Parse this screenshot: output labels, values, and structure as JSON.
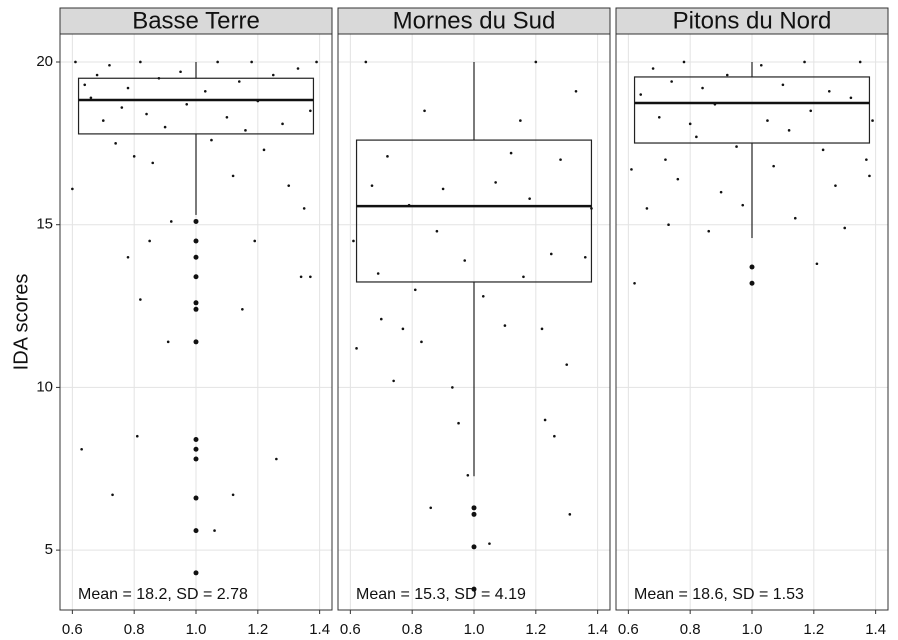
{
  "chart_data": [
    {
      "type": "box",
      "title": "Basse Terre",
      "ylabel": "IDA scores",
      "annotation": "Mean = 18.2, SD = 2.78",
      "position": 1,
      "box_xlim": [
        0.62,
        1.38
      ],
      "whisker_low": 15.3,
      "q1": 17.79,
      "median": 18.83,
      "q3": 19.5,
      "whisker_high": 20,
      "outliers": [
        15.1,
        14.5,
        14.0,
        13.4,
        12.6,
        12.4,
        11.4,
        8.4,
        8.1,
        7.8,
        6.6,
        5.6,
        4.3
      ],
      "points": {
        "x": [
          0.61,
          0.64,
          0.66,
          0.68,
          0.7,
          0.72,
          0.74,
          0.76,
          0.78,
          0.8,
          0.82,
          0.84,
          0.86,
          0.88,
          0.9,
          0.92,
          0.95,
          0.97,
          1.03,
          1.05,
          1.07,
          1.1,
          1.12,
          1.14,
          1.16,
          1.18,
          1.2,
          1.22,
          1.25,
          1.28,
          1.3,
          1.33,
          1.35,
          1.37,
          1.39,
          0.6,
          0.63,
          0.73,
          0.81,
          0.85,
          0.91,
          1.12,
          1.15,
          1.26,
          1.34,
          1.37,
          0.78,
          0.82,
          1.06,
          1.19
        ],
        "y": [
          20,
          19.3,
          18.9,
          19.6,
          18.2,
          19.9,
          17.5,
          18.6,
          19.2,
          17.1,
          20,
          18.4,
          16.9,
          19.5,
          18.0,
          15.1,
          19.7,
          18.7,
          19.1,
          17.6,
          20,
          18.3,
          16.5,
          19.4,
          17.9,
          20,
          18.8,
          17.3,
          19.6,
          18.1,
          16.2,
          19.8,
          15.5,
          18.5,
          20,
          16.1,
          8.1,
          6.7,
          8.5,
          14.5,
          11.4,
          6.7,
          12.4,
          7.8,
          13.4,
          13.4,
          14.0,
          12.7,
          5.6,
          14.5
        ]
      },
      "xlim": [
        0.56,
        1.44
      ],
      "xticks": [
        0.6,
        0.8,
        {
          "value": 1,
          "label": "1.0"
        },
        1.2,
        1.4
      ],
      "ylim": [
        3.16,
        20.86
      ],
      "yticks": [
        5,
        10,
        15,
        20
      ],
      "grid": true
    },
    {
      "type": "box",
      "title": "Mornes du Sud",
      "annotation": "Mean = 15.3, SD = 4.19",
      "position": 1,
      "box_xlim": [
        0.62,
        1.38
      ],
      "whisker_low": 7.27,
      "q1": 13.24,
      "median": 15.57,
      "q3": 17.6,
      "whisker_high": 20,
      "outliers": [
        6.3,
        6.1,
        5.1,
        3.8
      ],
      "points": {
        "x": [
          0.61,
          0.62,
          0.65,
          0.67,
          0.7,
          0.72,
          0.74,
          0.77,
          0.79,
          0.81,
          0.84,
          0.86,
          0.88,
          0.9,
          0.93,
          0.95,
          0.97,
          0.98,
          1.03,
          1.05,
          1.07,
          1.1,
          1.12,
          1.15,
          1.18,
          1.2,
          1.22,
          1.23,
          1.25,
          1.28,
          1.3,
          1.31,
          1.33,
          1.36,
          1.38,
          0.69,
          1.16,
          1.26,
          0.83
        ],
        "y": [
          14.5,
          11.2,
          20,
          16.2,
          12.1,
          17.1,
          10.2,
          11.8,
          15.6,
          13.0,
          18.5,
          6.3,
          14.8,
          16.1,
          10.0,
          8.9,
          13.9,
          7.3,
          12.8,
          5.2,
          16.3,
          11.9,
          17.2,
          18.2,
          15.8,
          20,
          11.8,
          9.0,
          14.1,
          17.0,
          10.7,
          6.1,
          19.1,
          14.0,
          15.5,
          13.5,
          13.4,
          8.5,
          11.4
        ]
      },
      "xlim": [
        0.56,
        1.44
      ],
      "xticks": [
        0.6,
        0.8,
        {
          "value": 1,
          "label": "1.0"
        },
        1.2,
        1.4
      ],
      "ylim": [
        3.16,
        20.86
      ],
      "yticks": [
        5,
        10,
        15,
        20
      ],
      "grid": true
    },
    {
      "type": "box",
      "title": "Pitons du Nord",
      "annotation": "Mean = 18.6, SD = 1.53",
      "position": 1,
      "box_xlim": [
        0.62,
        1.38
      ],
      "whisker_low": 14.59,
      "q1": 17.51,
      "median": 18.74,
      "q3": 19.54,
      "whisker_high": 20,
      "outliers": [
        13.7,
        13.2
      ],
      "points": {
        "x": [
          0.61,
          0.62,
          0.64,
          0.66,
          0.68,
          0.7,
          0.72,
          0.74,
          0.76,
          0.78,
          0.8,
          0.82,
          0.84,
          0.86,
          0.88,
          0.9,
          0.92,
          0.95,
          0.97,
          1.03,
          1.05,
          1.07,
          1.1,
          1.12,
          1.14,
          1.17,
          1.19,
          1.21,
          1.23,
          1.25,
          1.27,
          1.3,
          1.32,
          1.35,
          1.37,
          1.39,
          1.38,
          0.73
        ],
        "y": [
          16.7,
          13.2,
          19.0,
          15.5,
          19.8,
          18.3,
          17.0,
          19.4,
          16.4,
          20,
          18.1,
          17.7,
          19.2,
          14.8,
          18.7,
          16.0,
          19.6,
          17.4,
          15.6,
          19.9,
          18.2,
          16.8,
          19.3,
          17.9,
          15.2,
          20,
          18.5,
          13.8,
          17.3,
          19.1,
          16.2,
          14.9,
          18.9,
          20,
          17.0,
          18.2,
          16.5,
          15.0
        ]
      },
      "xlim": [
        0.56,
        1.44
      ],
      "xticks": [
        0.6,
        0.8,
        {
          "value": 1,
          "label": "1.0"
        },
        1.2,
        1.4
      ],
      "ylim": [
        3.16,
        20.86
      ],
      "yticks": [
        5,
        10,
        15,
        20
      ],
      "grid": true
    }
  ]
}
